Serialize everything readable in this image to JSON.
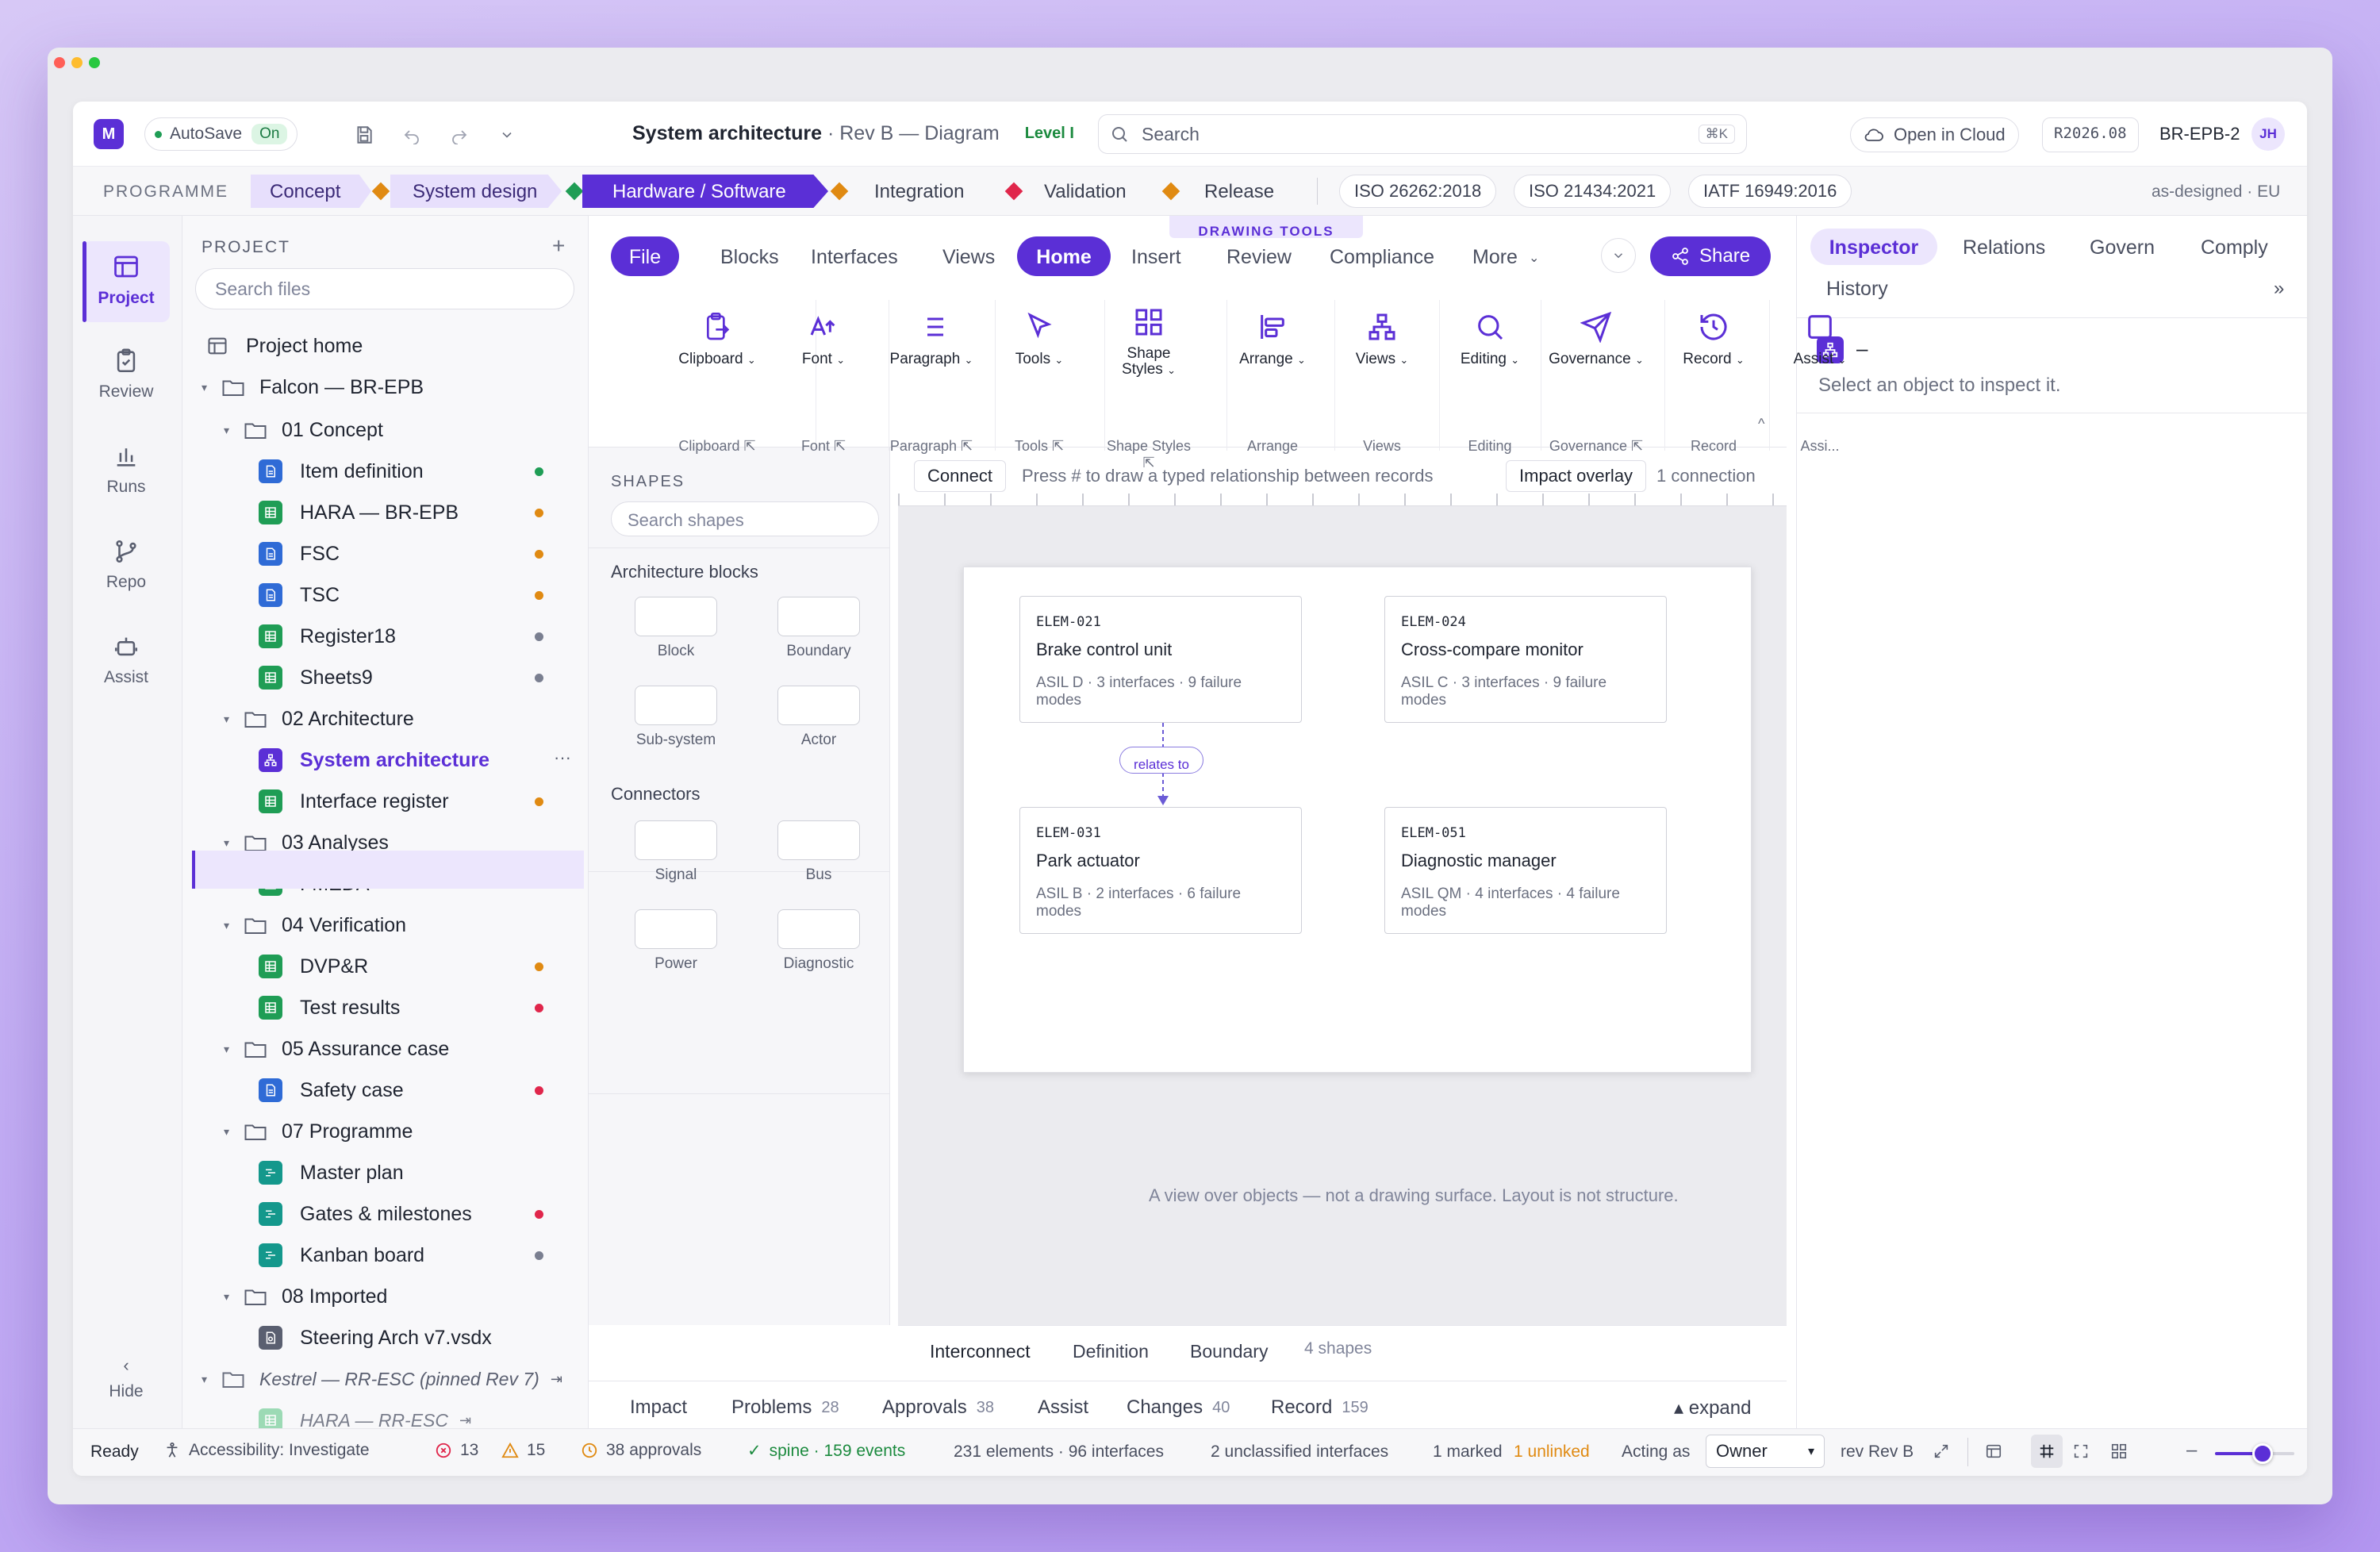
{
  "window": {
    "dots": [
      "#ff5f57",
      "#febc2e",
      "#28c840"
    ]
  },
  "app": {
    "logo_letter": "M",
    "autosave_label": "AutoSave",
    "autosave_state": "On",
    "doc_title": "System architecture",
    "doc_sub": " · Rev B — Diagram",
    "level_badge": "Level I",
    "search_placeholder": "Search",
    "search_shortcut": "⌘K",
    "open_cloud": "Open in Cloud",
    "release": "R2026.08",
    "project_code": "BR-EPB-2",
    "avatar": "JH"
  },
  "phases": {
    "label": "PROGRAMME",
    "items": [
      "Concept",
      "System design",
      "Hardware / Software",
      "Integration",
      "Validation",
      "Release"
    ],
    "standards": [
      "ISO 26262:2018",
      "ISO 21434:2021",
      "IATF 16949:2016"
    ],
    "scope": "as-designed · EU"
  },
  "rail": {
    "items": [
      "Project",
      "Review",
      "Runs",
      "Repo",
      "Assist"
    ],
    "hide_label": "Hide"
  },
  "tree": {
    "header": "PROJECT",
    "search_placeholder": "Search files",
    "home": "Project home",
    "root": "Falcon — BR-EPB",
    "folders": [
      "01 Concept",
      "02 Architecture",
      "03 Analyses",
      "04 Verification",
      "05 Assurance case",
      "07 Programme",
      "08 Imported"
    ],
    "files": [
      "Item definition",
      "HARA — BR-EPB",
      "FSC",
      "TSC",
      "Register18",
      "Sheets9",
      "System architecture",
      "Interface register",
      "FMEDA",
      "DVP&R",
      "Test results",
      "Safety case",
      "Master plan",
      "Gates & milestones",
      "Kanban board",
      "Steering Arch v7.vsdx"
    ],
    "pinned_root": "Kestrel — RR-ESC (pinned Rev 7)",
    "pinned_file": "HARA — RR-ESC",
    "more": "···"
  },
  "tabs": {
    "context": "DRAWING TOOLS",
    "items": [
      "File",
      "Blocks",
      "Interfaces",
      "Views",
      "Home",
      "Insert",
      "Review",
      "Compliance",
      "More"
    ],
    "share": "Share"
  },
  "ribbon": {
    "groups": [
      "Clipboard",
      "Font",
      "Paragraph",
      "Tools",
      "Shape Styles",
      "Arrange",
      "Views",
      "Editing",
      "Governance",
      "Record",
      "Assist"
    ],
    "labels": [
      "Clipboard",
      "Font",
      "Paragraph",
      "Tools",
      "Shape Styles",
      "Arrange",
      "Views",
      "Editing",
      "Governance",
      "Record",
      "Assi..."
    ]
  },
  "shapes": {
    "title": "SHAPES",
    "search_placeholder": "Search shapes",
    "section1": "Architecture blocks",
    "blocks": [
      "Block",
      "Boundary",
      "Sub-system",
      "Actor"
    ],
    "section2": "Connectors",
    "connectors": [
      "Signal",
      "Bus",
      "Power",
      "Diagnostic"
    ]
  },
  "canvas": {
    "connect": "Connect",
    "hint": "Press # to draw a typed relationship between records",
    "impact_overlay": "Impact overlay",
    "connection_count": "1 connection",
    "cards": [
      {
        "id": "ELEM-021",
        "name": "Brake control unit",
        "meta": "ASIL D · 3 interfaces · 9 failure modes"
      },
      {
        "id": "ELEM-024",
        "name": "Cross-compare monitor",
        "meta": "ASIL C · 3 interfaces · 9 failure modes"
      },
      {
        "id": "ELEM-031",
        "name": "Park actuator",
        "meta": "ASIL B · 2 interfaces · 6 failure modes"
      },
      {
        "id": "ELEM-051",
        "name": "Diagnostic manager",
        "meta": "ASIL QM · 4 interfaces · 4 failure modes"
      }
    ],
    "relation": "relates to",
    "caption": "A view over objects — not a drawing surface. Layout is not structure.",
    "view_tabs": [
      "Interconnect",
      "Definition",
      "Boundary"
    ],
    "shape_count": "4 shapes"
  },
  "bottom": {
    "tabs": [
      {
        "label": "Impact",
        "count": ""
      },
      {
        "label": "Problems",
        "count": "28"
      },
      {
        "label": "Approvals",
        "count": "38"
      },
      {
        "label": "Assist",
        "count": ""
      },
      {
        "label": "Changes",
        "count": "40"
      },
      {
        "label": "Record",
        "count": "159"
      }
    ],
    "expand": "▴ expand"
  },
  "inspector": {
    "tabs": [
      "Inspector",
      "Relations",
      "Govern",
      "Comply",
      "History"
    ],
    "more": "»",
    "title": "–",
    "hint": "Select an object to inspect it."
  },
  "status": {
    "ready": "Ready",
    "accessibility": "Accessibility: Investigate",
    "errors": "13",
    "warnings": "15",
    "approvals": "38 approvals",
    "spine": "spine · 159 events",
    "elements": "231 elements · 96 interfaces",
    "unclassified": "2 unclassified interfaces",
    "marked": "1 marked",
    "unlinked": "1 unlinked",
    "acting_as": "Acting as",
    "role": "Owner",
    "rev": "rev Rev B",
    "zoom_fraction": 0.6
  },
  "colors": {
    "accent": "#5b2fd6",
    "accent_light": "#ece6fd",
    "green": "#1f9d55",
    "orange": "#e08a12",
    "red": "#e0264b",
    "gray": "#7a7f90"
  }
}
